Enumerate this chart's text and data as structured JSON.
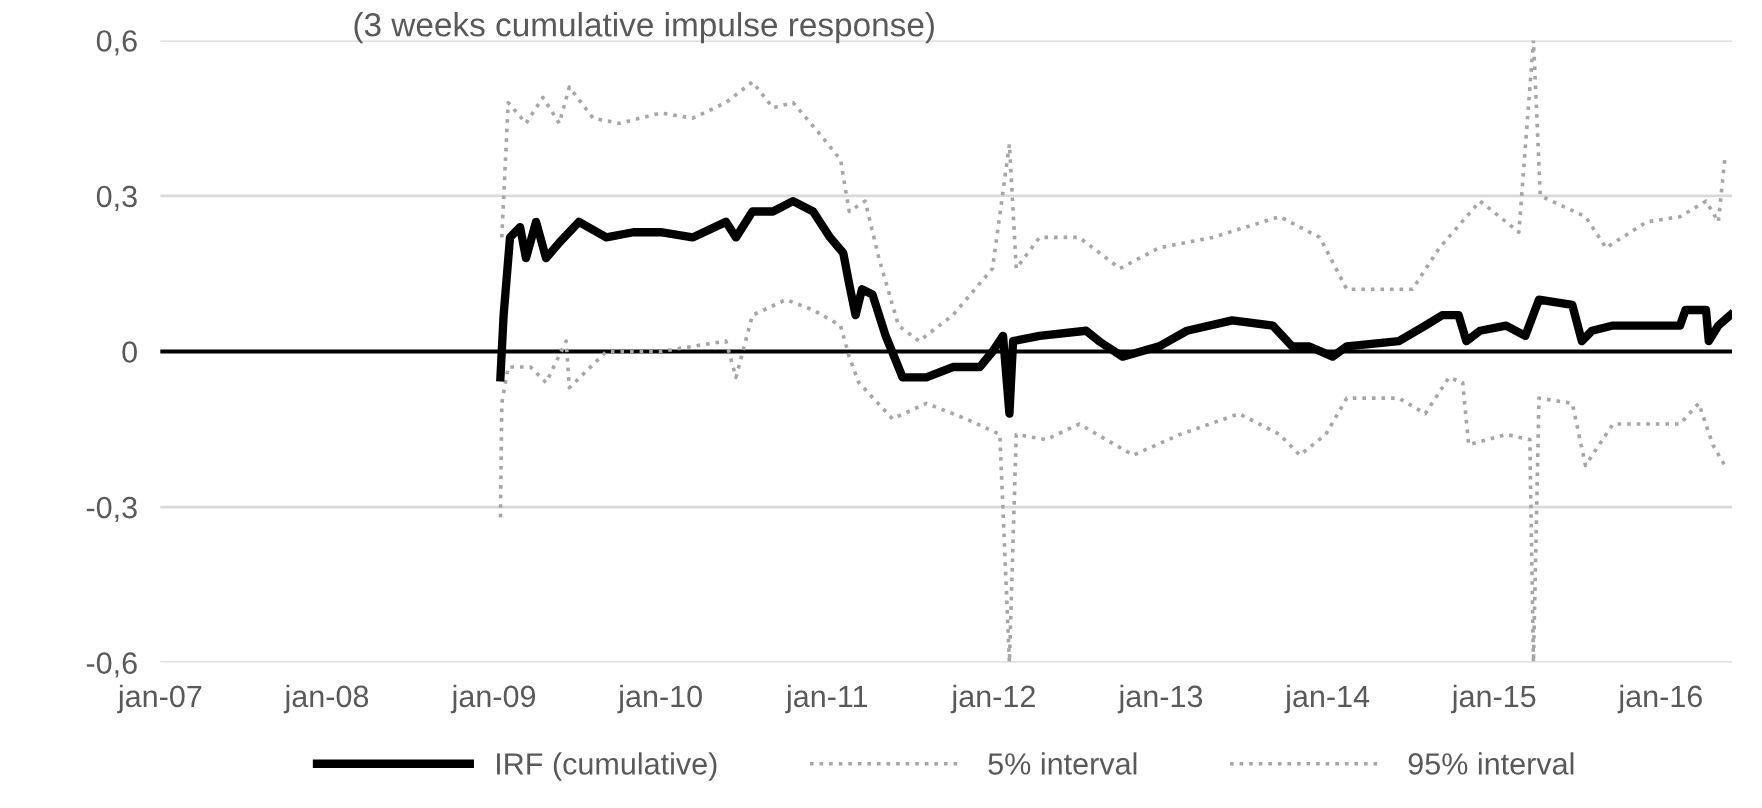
{
  "chart_data": {
    "type": "line",
    "title": "(3 weeks cumulative impulse response)",
    "xlim": [
      "2007-01-01",
      "2016-06-05"
    ],
    "xticks": [
      {
        "value": "2007-01-01",
        "label": "jan-07"
      },
      {
        "value": "2008-01-01",
        "label": "jan-08"
      },
      {
        "value": "2009-01-01",
        "label": "jan-09"
      },
      {
        "value": "2010-01-01",
        "label": "jan-10"
      },
      {
        "value": "2011-01-01",
        "label": "jan-11"
      },
      {
        "value": "2012-01-01",
        "label": "jan-12"
      },
      {
        "value": "2013-01-01",
        "label": "jan-13"
      },
      {
        "value": "2014-01-01",
        "label": "jan-14"
      },
      {
        "value": "2015-01-01",
        "label": "jan-15"
      },
      {
        "value": "2016-01-01",
        "label": "jan-16"
      }
    ],
    "ylim": [
      -0.6,
      0.6
    ],
    "yticks": [
      {
        "value": -0.6,
        "label": "-0,6"
      },
      {
        "value": -0.3,
        "label": "-0,3"
      },
      {
        "value": 0,
        "label": "0"
      },
      {
        "value": 0.3,
        "label": "0,3"
      },
      {
        "value": 0.6,
        "label": "0,6"
      }
    ],
    "grid": "y",
    "legend": "bottom",
    "marker": "none",
    "ref_lines": [
      {
        "axis": "y",
        "value": 0,
        "color": "#000000"
      }
    ],
    "series": [
      {
        "name": "IRF (cumulative)",
        "color": "#000000",
        "line_style": "solid",
        "x": [
          "2009-01-15",
          "2009-01-22",
          "2009-02-05",
          "2009-02-27",
          "2009-03-12",
          "2009-04-03",
          "2009-04-25",
          "2009-05-24",
          "2009-07-06",
          "2009-09-04",
          "2009-11-02",
          "2010-01-01",
          "2010-03-12",
          "2010-05-24",
          "2010-06-15",
          "2010-07-21",
          "2010-09-04",
          "2010-10-18",
          "2010-12-01",
          "2011-01-07",
          "2011-02-05",
          "2011-02-18",
          "2011-03-04",
          "2011-03-18",
          "2011-04-10",
          "2011-05-09",
          "2011-06-15",
          "2011-08-06",
          "2011-10-03",
          "2011-12-01",
          "2011-12-29",
          "2012-01-21",
          "2012-02-04",
          "2012-02-12",
          "2012-04-10",
          "2012-07-21",
          "2012-08-18",
          "2012-10-09",
          "2012-12-28",
          "2013-02-27",
          "2013-06-06",
          "2013-09-03",
          "2013-10-15",
          "2013-11-21",
          "2014-01-12",
          "2014-02-12",
          "2014-06-06",
          "2014-08-03",
          "2014-09-09",
          "2014-10-15",
          "2014-11-01",
          "2014-12-01",
          "2015-01-27",
          "2015-03-10",
          "2015-04-09",
          "2015-06-21",
          "2015-07-12",
          "2015-08-03",
          "2015-09-18",
          "2016-02-12",
          "2016-02-24",
          "2016-04-09",
          "2016-04-15",
          "2016-05-06",
          "2016-06-01"
        ],
        "values": [
          -0.05,
          0.07,
          0.22,
          0.24,
          0.18,
          0.25,
          0.18,
          0.21,
          0.25,
          0.22,
          0.23,
          0.23,
          0.22,
          0.25,
          0.22,
          0.27,
          0.27,
          0.29,
          0.27,
          0.22,
          0.19,
          0.13,
          0.07,
          0.12,
          0.11,
          0.03,
          -0.05,
          -0.05,
          -0.03,
          -0.03,
          0,
          0.03,
          -0.12,
          0.02,
          0.03,
          0.04,
          0.02,
          -0.01,
          0.01,
          0.04,
          0.06,
          0.05,
          0.01,
          0.01,
          -0.01,
          0.01,
          0.02,
          0.05,
          0.07,
          0.07,
          0.02,
          0.04,
          0.05,
          0.03,
          0.1,
          0.09,
          0.02,
          0.04,
          0.05,
          0.05,
          0.08,
          0.08,
          0.02,
          0.05,
          0.07
        ]
      },
      {
        "name": "5% interval",
        "color": "#a6a6a6",
        "line_style": "dotted",
        "x": [
          "2009-01-15",
          "2009-01-18",
          "2009-02-01",
          "2009-03-22",
          "2009-04-25",
          "2009-06-08",
          "2009-06-15",
          "2009-09-04",
          "2010-01-01",
          "2010-03-12",
          "2010-05-24",
          "2010-06-15",
          "2010-07-21",
          "2010-10-03",
          "2010-12-01",
          "2011-01-30",
          "2011-02-18",
          "2011-03-11",
          "2011-05-24",
          "2011-08-06",
          "2011-11-01",
          "2012-01-14",
          "2012-02-04",
          "2012-02-19",
          "2012-04-24",
          "2012-07-06",
          "2012-11-01",
          "2013-02-12",
          "2013-06-21",
          "2013-09-18",
          "2013-11-01",
          "2013-12-28",
          "2014-02-12",
          "2014-06-06",
          "2014-08-03",
          "2014-09-24",
          "2014-10-24",
          "2014-11-06",
          "2015-01-27",
          "2015-03-20",
          "2015-03-28",
          "2015-04-09",
          "2015-06-21",
          "2015-07-20",
          "2015-09-18",
          "2016-02-12",
          "2016-03-24",
          "2016-04-24",
          "2016-05-20"
        ],
        "values": [
          -0.32,
          -0.1,
          -0.03,
          -0.03,
          -0.06,
          0.02,
          -0.07,
          0,
          0,
          0.01,
          0.02,
          -0.05,
          0.07,
          0.1,
          0.08,
          0.05,
          -0.01,
          -0.06,
          -0.13,
          -0.1,
          -0.13,
          -0.16,
          -0.6,
          -0.16,
          -0.17,
          -0.14,
          -0.2,
          -0.16,
          -0.12,
          -0.16,
          -0.2,
          -0.16,
          -0.09,
          -0.09,
          -0.12,
          -0.05,
          -0.06,
          -0.18,
          -0.16,
          -0.17,
          -0.6,
          -0.09,
          -0.1,
          -0.22,
          -0.14,
          -0.14,
          -0.1,
          -0.18,
          -0.22
        ]
      },
      {
        "name": "95% interval",
        "color": "#a6a6a6",
        "line_style": "dotted",
        "x": [
          "2009-01-18",
          "2009-02-01",
          "2009-03-12",
          "2009-04-18",
          "2009-05-24",
          "2009-06-15",
          "2009-08-06",
          "2009-10-03",
          "2010-01-01",
          "2010-03-12",
          "2010-05-24",
          "2010-07-21",
          "2010-09-04",
          "2010-10-18",
          "2010-12-15",
          "2011-01-30",
          "2011-02-18",
          "2011-03-25",
          "2011-04-24",
          "2011-06-06",
          "2011-07-21",
          "2011-10-03",
          "2011-12-29",
          "2012-02-04",
          "2012-02-19",
          "2012-04-10",
          "2012-07-06",
          "2012-10-03",
          "2012-12-28",
          "2013-04-24",
          "2013-09-18",
          "2013-12-15",
          "2014-02-12",
          "2014-05-06",
          "2014-07-06",
          "2014-09-03",
          "2014-12-01",
          "2015-02-24",
          "2015-03-28",
          "2015-04-12",
          "2015-07-20",
          "2015-09-03",
          "2015-12-01",
          "2016-02-12",
          "2016-04-09",
          "2016-05-06",
          "2016-05-20"
        ],
        "values": [
          0.22,
          0.48,
          0.44,
          0.49,
          0.44,
          0.51,
          0.45,
          0.44,
          0.46,
          0.45,
          0.48,
          0.52,
          0.47,
          0.48,
          0.42,
          0.37,
          0.27,
          0.29,
          0.18,
          0.05,
          0.02,
          0.07,
          0.16,
          0.4,
          0.16,
          0.22,
          0.22,
          0.16,
          0.2,
          0.22,
          0.26,
          0.22,
          0.12,
          0.12,
          0.12,
          0.2,
          0.29,
          0.23,
          0.6,
          0.3,
          0.26,
          0.2,
          0.25,
          0.26,
          0.29,
          0.25,
          0.37
        ]
      }
    ]
  }
}
